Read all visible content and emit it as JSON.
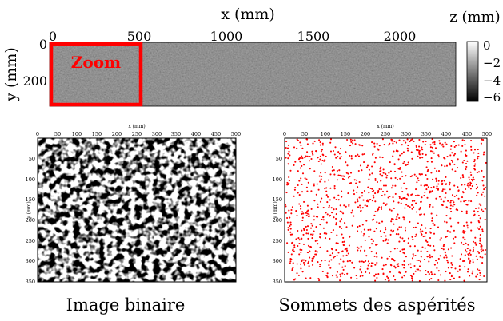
{
  "top_panel": {
    "xlabel": "x (mm)",
    "ylabel": "y (mm)",
    "x_ticks": [
      "0",
      "500",
      "1000",
      "1500",
      "2000"
    ],
    "y_ticks": [
      "0",
      "200"
    ],
    "zoom_label": "Zoom",
    "colorbar_title": "z (mm)",
    "colorbar_ticks": [
      "0",
      "−2",
      "−4",
      "−6"
    ],
    "zoom_color": "#ff0000"
  },
  "panel_binary": {
    "xlabel": "x (mm)",
    "ylabel": "y (mm)",
    "x_ticks": [
      "0",
      "50",
      "100",
      "150",
      "200",
      "250",
      "300",
      "350",
      "400",
      "450",
      "500"
    ],
    "y_ticks": [
      "50",
      "100",
      "150",
      "200",
      "250",
      "300",
      "350"
    ],
    "caption": "Image binaire"
  },
  "panel_peaks": {
    "xlabel": "x (mm)",
    "ylabel": "y (mm)",
    "x_ticks": [
      "0",
      "50",
      "100",
      "150",
      "200",
      "250",
      "300",
      "350",
      "400",
      "450",
      "500"
    ],
    "y_ticks": [
      "50",
      "100",
      "150",
      "200",
      "250",
      "300",
      "350"
    ],
    "caption": "Sommets des aspérités",
    "marker_color": "#ff0000"
  }
}
